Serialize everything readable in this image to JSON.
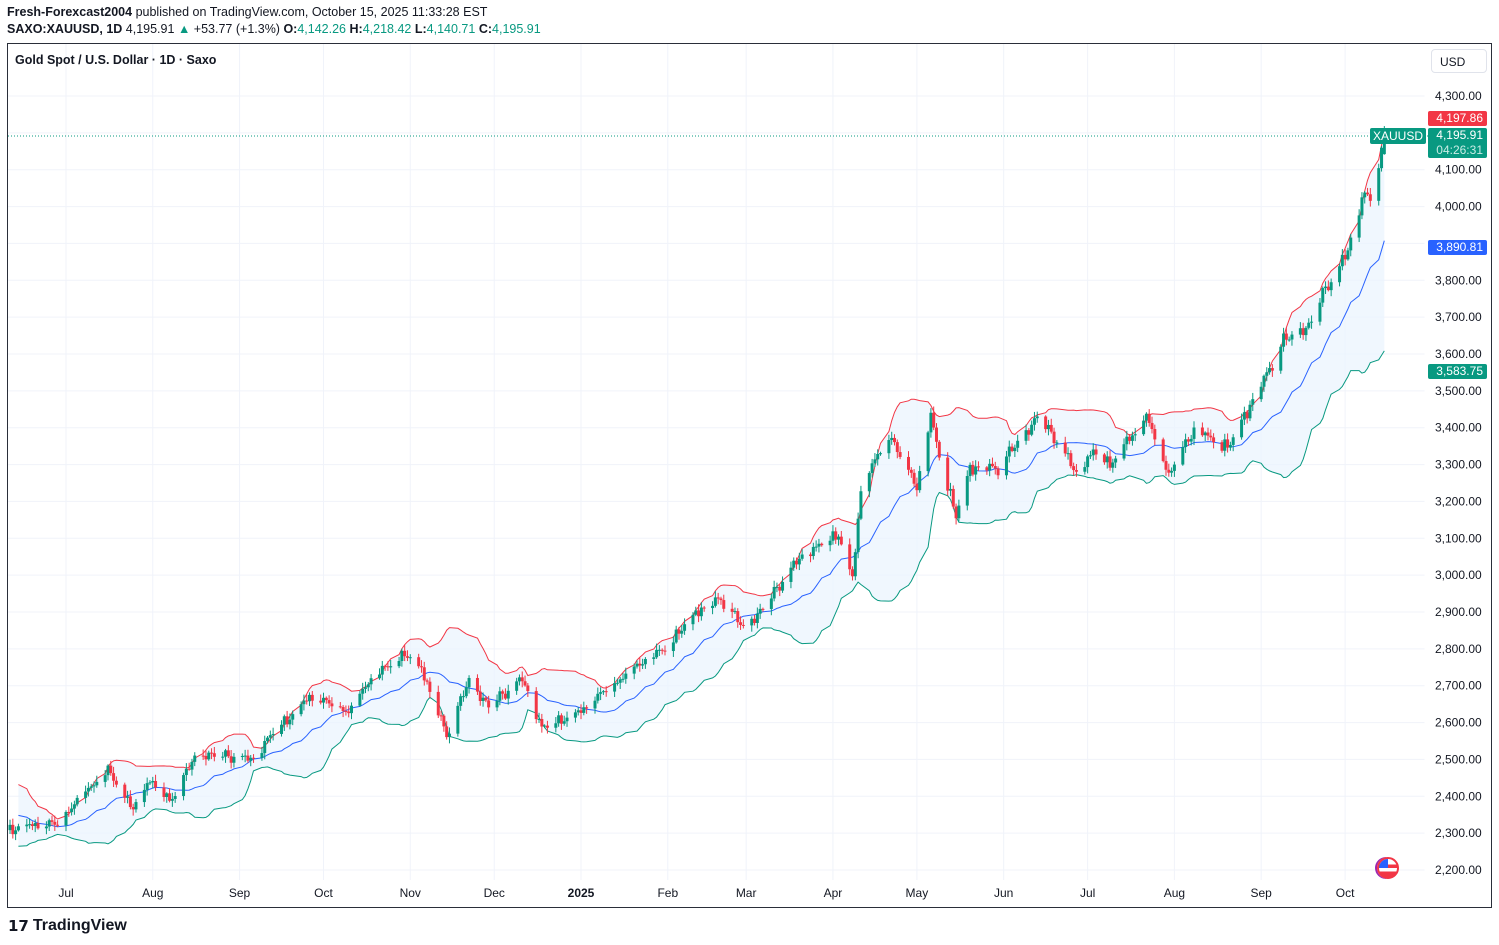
{
  "header": {
    "author": "Fresh-Forexcast2004",
    "published": "published on TradingView.com, October 15, 2025 11:33:28 EST",
    "symbol": "SAXO:XAUUSD, 1D",
    "last": "4,195.91",
    "change": "+53.77 (+1.3%)",
    "o_label": "O:",
    "o": "4,142.26",
    "h_label": "H:",
    "h": "4,218.42",
    "l_label": "L:",
    "l": "4,140.71",
    "c_label": "C:",
    "c": "4,195.91"
  },
  "chart_title": "Gold Spot / U.S. Dollar · 1D · Saxo",
  "currency": "USD",
  "price_tags": {
    "upper": "4,197.86",
    "symbol": "XAUUSD",
    "price": "4,195.91",
    "countdown": "04:26:31",
    "basis": "3,890.81",
    "lower": "3,583.75"
  },
  "colors": {
    "up": "#089981",
    "down": "#f23645",
    "upper_band": "#f23645",
    "basis": "#2962ff",
    "lower_band": "#089981",
    "fill": "#eaf3fd"
  },
  "icons": {
    "flag": "us-flag-icon",
    "logo": "tradingview-logo"
  },
  "brand": "TradingView",
  "chart_data": {
    "type": "candlestick",
    "indicator": "Bollinger Bands (20, 2)",
    "ylim": [
      2150,
      4380
    ],
    "y_ticks": [
      "4,300.00",
      "4,100.00",
      "4,000.00",
      "3,800.00",
      "3,700.00",
      "3,600.00",
      "3,500.00",
      "3,400.00",
      "3,300.00",
      "3,200.00",
      "3,100.00",
      "3,000.00",
      "2,900.00",
      "2,800.00",
      "2,700.00",
      "2,600.00",
      "2,500.00",
      "2,400.00",
      "2,300.00",
      "2,200.00"
    ],
    "x_ticks": [
      [
        "Jul",
        "2024-07-01"
      ],
      [
        "Aug",
        "2024-08-01"
      ],
      [
        "Sep",
        "2024-09-01"
      ],
      [
        "Oct",
        "2024-10-01"
      ],
      [
        "Nov",
        "2024-11-01"
      ],
      [
        "Dec",
        "2024-12-01"
      ],
      [
        "2025",
        "2025-01-01"
      ],
      [
        "Feb",
        "2025-02-01"
      ],
      [
        "Mar",
        "2025-03-01"
      ],
      [
        "Apr",
        "2025-04-01"
      ],
      [
        "May",
        "2025-05-01"
      ],
      [
        "Jun",
        "2025-06-01"
      ],
      [
        "Jul",
        "2025-07-01"
      ],
      [
        "Aug",
        "2025-08-01"
      ],
      [
        "Sep",
        "2025-09-01"
      ],
      [
        "Oct",
        "2025-10-01"
      ]
    ],
    "close_path": [
      [
        "2024-05-20",
        2420
      ],
      [
        "2024-06-07",
        2300
      ],
      [
        "2024-06-17",
        2320
      ],
      [
        "2024-06-28",
        2326
      ],
      [
        "2024-07-05",
        2390
      ],
      [
        "2024-07-16",
        2470
      ],
      [
        "2024-07-25",
        2365
      ],
      [
        "2024-07-31",
        2445
      ],
      [
        "2024-08-07",
        2385
      ],
      [
        "2024-08-16",
        2505
      ],
      [
        "2024-08-20",
        2515
      ],
      [
        "2024-09-06",
        2500
      ],
      [
        "2024-09-13",
        2575
      ],
      [
        "2024-09-20",
        2620
      ],
      [
        "2024-09-26",
        2670
      ],
      [
        "2024-10-04",
        2650
      ],
      [
        "2024-10-10",
        2630
      ],
      [
        "2024-10-18",
        2720
      ],
      [
        "2024-10-30",
        2785
      ],
      [
        "2024-11-05",
        2745
      ],
      [
        "2024-11-08",
        2685
      ],
      [
        "2024-11-14",
        2565
      ],
      [
        "2024-11-22",
        2715
      ],
      [
        "2024-11-29",
        2645
      ],
      [
        "2024-12-11",
        2718
      ],
      [
        "2024-12-18",
        2585
      ],
      [
        "2024-12-31",
        2625
      ],
      [
        "2025-01-10",
        2690
      ],
      [
        "2025-01-24",
        2770
      ],
      [
        "2025-01-31",
        2800
      ],
      [
        "2025-02-11",
        2898
      ],
      [
        "2025-02-20",
        2935
      ],
      [
        "2025-02-28",
        2858
      ],
      [
        "2025-03-07",
        2910
      ],
      [
        "2025-03-14",
        2985
      ],
      [
        "2025-03-20",
        3045
      ],
      [
        "2025-03-28",
        3085
      ],
      [
        "2025-04-03",
        3110
      ],
      [
        "2025-04-08",
        2985
      ],
      [
        "2025-04-11",
        3235
      ],
      [
        "2025-04-17",
        3325
      ],
      [
        "2025-04-22",
        3380
      ],
      [
        "2025-04-25",
        3320
      ],
      [
        "2025-05-01",
        3240
      ],
      [
        "2025-05-06",
        3430
      ],
      [
        "2025-05-09",
        3325
      ],
      [
        "2025-05-15",
        3160
      ],
      [
        "2025-05-20",
        3290
      ],
      [
        "2025-05-30",
        3290
      ],
      [
        "2025-06-05",
        3350
      ],
      [
        "2025-06-13",
        3430
      ],
      [
        "2025-06-20",
        3365
      ],
      [
        "2025-06-27",
        3275
      ],
      [
        "2025-07-03",
        3335
      ],
      [
        "2025-07-09",
        3300
      ],
      [
        "2025-07-22",
        3430
      ],
      [
        "2025-07-30",
        3275
      ],
      [
        "2025-08-08",
        3395
      ],
      [
        "2025-08-20",
        3345
      ],
      [
        "2025-09-02",
        3530
      ],
      [
        "2025-09-09",
        3635
      ],
      [
        "2025-09-19",
        3685
      ],
      [
        "2025-09-23",
        3765
      ],
      [
        "2025-10-01",
        3860
      ],
      [
        "2025-10-08",
        4040
      ],
      [
        "2025-10-10",
        4015
      ],
      [
        "2025-10-14",
        4142
      ],
      [
        "2025-10-15",
        4195.91
      ]
    ],
    "last_candle": {
      "date": "2025-10-15",
      "open": 4142.26,
      "high": 4218.42,
      "low": 4140.71,
      "close": 4195.91
    }
  }
}
